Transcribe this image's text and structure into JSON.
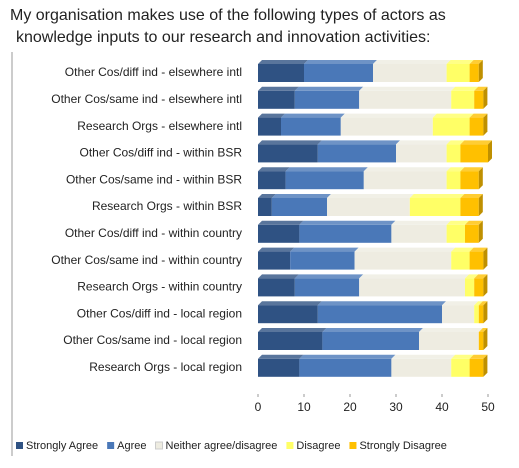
{
  "chart_data": {
    "type": "stacked-bar-horizontal",
    "title": "My organisation makes use of the following types of actors as knowledge inputs to our research and innovation activities:",
    "categories": [
      "Other Cos/diff ind - elsewhere intl",
      "Other Cos/same ind - elsewhere intl",
      "Research Orgs - elsewhere intl",
      "Other Cos/diff ind - within BSR",
      "Other Cos/same ind - within BSR",
      "Research Orgs - within BSR",
      "Other Cos/diff ind - within country",
      "Other Cos/same ind - within country",
      "Research Orgs - within country",
      "Other Cos/diff ind - local region",
      "Other Cos/same ind - local region",
      "Research Orgs - local region"
    ],
    "series": [
      {
        "name": "Strongly Agree",
        "color": "#2f5283",
        "values": [
          10,
          8,
          5,
          13,
          6,
          3,
          9,
          7,
          8,
          13,
          14,
          9
        ]
      },
      {
        "name": "Agree",
        "color": "#4a78b8",
        "values": [
          15,
          14,
          13,
          17,
          17,
          12,
          20,
          14,
          14,
          27,
          21,
          20
        ]
      },
      {
        "name": "Neither agree/disagree",
        "color": "#eeece1",
        "values": [
          16,
          20,
          20,
          11,
          18,
          18,
          12,
          21,
          23,
          7,
          13,
          13
        ]
      },
      {
        "name": "Disagree",
        "color": "#ffff66",
        "values": [
          5,
          5,
          8,
          3,
          3,
          11,
          4,
          4,
          2,
          1,
          0,
          4
        ]
      },
      {
        "name": "Strongly Disagree",
        "color": "#ffc000",
        "values": [
          2,
          2,
          3,
          6,
          4,
          4,
          3,
          3,
          2,
          1,
          1,
          3
        ]
      }
    ],
    "xlim": [
      0,
      50
    ],
    "xticks": [
      0,
      10,
      20,
      30,
      40,
      50
    ]
  }
}
